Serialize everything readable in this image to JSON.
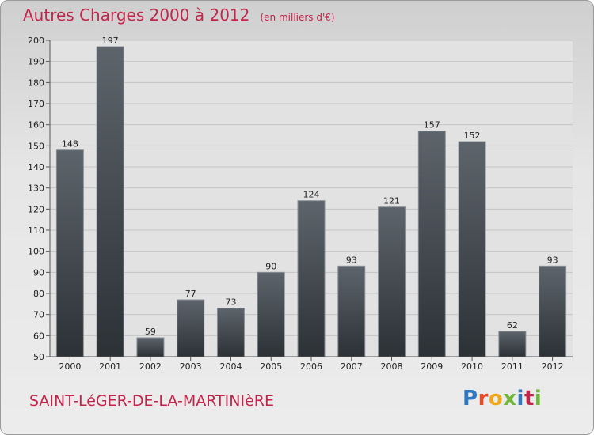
{
  "chart_data": {
    "type": "bar",
    "title": "Autres Charges 2000 à 2012",
    "unit_label": "(en milliers d'€)",
    "categories": [
      "2000",
      "2001",
      "2002",
      "2003",
      "2004",
      "2005",
      "2006",
      "2007",
      "2008",
      "2009",
      "2010",
      "2011",
      "2012"
    ],
    "values": [
      148,
      197,
      59,
      77,
      73,
      90,
      124,
      93,
      121,
      157,
      152,
      62,
      93
    ],
    "ylim": [
      50,
      200
    ],
    "yticks": [
      50,
      60,
      70,
      80,
      90,
      100,
      110,
      120,
      130,
      140,
      150,
      160,
      170,
      180,
      190,
      200
    ],
    "grid": true,
    "bar_color": "#4a5057"
  },
  "footer": {
    "place": "SAINT-LéGER-DE-LA-MARTINIèRE",
    "logo": [
      "P",
      "r",
      "o",
      "x",
      "i",
      "t",
      "i"
    ]
  }
}
